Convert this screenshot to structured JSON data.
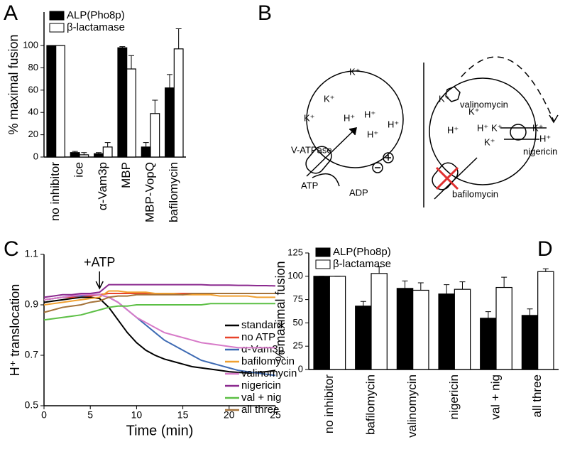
{
  "panels": [
    "A",
    "B",
    "C",
    "D"
  ],
  "chart_data": [
    {
      "type": "bar",
      "ylabel": "% maximal fusion",
      "categories": [
        "no inhibitor",
        "ice",
        "α-Vam3p",
        "MBP",
        "MBP-VopQ",
        "bafilomycin"
      ],
      "series": [
        {
          "name": "ALP(Pho8p)",
          "color": "#000000",
          "values": [
            100,
            4,
            3,
            98,
            9,
            62
          ],
          "errors": [
            0,
            1,
            1,
            1,
            4,
            12
          ]
        },
        {
          "name": "β-lactamase",
          "color": "#ffffff",
          "values": [
            100,
            2,
            9,
            79,
            39,
            97
          ],
          "errors": [
            0,
            2,
            4,
            12,
            12,
            18
          ]
        }
      ],
      "ylim": [
        0,
        130
      ],
      "yticks": [
        0,
        20,
        40,
        60,
        80,
        100
      ]
    },
    {
      "type": "line",
      "ylabel": "H⁺ translocation",
      "xlabel": "Time (min)",
      "annotation": {
        "text": "+ATP",
        "x": 6
      },
      "x": [
        0,
        1,
        2,
        3,
        4,
        5,
        6,
        7,
        8,
        9,
        10,
        11,
        12,
        13,
        14,
        15,
        16,
        17,
        18,
        19,
        20,
        21,
        22,
        23,
        24,
        25
      ],
      "series": [
        {
          "name": "standard",
          "color": "#000000",
          "values": [
            0.91,
            0.915,
            0.92,
            0.925,
            0.93,
            0.93,
            0.925,
            0.89,
            0.84,
            0.79,
            0.75,
            0.72,
            0.7,
            0.685,
            0.675,
            0.665,
            0.655,
            0.65,
            0.645,
            0.64,
            0.635,
            0.632,
            0.63,
            0.632,
            0.635,
            0.64
          ]
        },
        {
          "name": "no ATP",
          "color": "#e8432a",
          "values": [
            0.92,
            0.925,
            0.93,
            0.93,
            0.935,
            0.935,
            0.94,
            0.945,
            0.945,
            0.945,
            0.945,
            0.945,
            0.945,
            0.945,
            0.945,
            0.945,
            0.945,
            0.945,
            0.945,
            0.945,
            0.945,
            0.945,
            0.945,
            0.945,
            0.945,
            0.945
          ]
        },
        {
          "name": "α-Vam3p",
          "color": "#3d6ab3",
          "values": [
            0.92,
            0.925,
            0.93,
            0.935,
            0.935,
            0.94,
            0.94,
            0.93,
            0.91,
            0.88,
            0.85,
            0.82,
            0.79,
            0.76,
            0.74,
            0.72,
            0.7,
            0.68,
            0.67,
            0.66,
            0.65,
            0.64,
            0.635,
            0.63,
            0.625,
            0.62
          ]
        },
        {
          "name": "bafilomycin",
          "color": "#f0a030",
          "values": [
            0.9,
            0.905,
            0.91,
            0.915,
            0.92,
            0.925,
            0.93,
            0.955,
            0.955,
            0.95,
            0.95,
            0.95,
            0.945,
            0.945,
            0.945,
            0.94,
            0.94,
            0.94,
            0.94,
            0.935,
            0.935,
            0.935,
            0.935,
            0.93,
            0.93,
            0.93
          ]
        },
        {
          "name": "valinomycin",
          "color": "#d77ac8",
          "values": [
            0.92,
            0.925,
            0.93,
            0.935,
            0.94,
            0.94,
            0.94,
            0.93,
            0.91,
            0.88,
            0.85,
            0.83,
            0.81,
            0.79,
            0.78,
            0.77,
            0.76,
            0.75,
            0.745,
            0.74,
            0.735,
            0.73,
            0.73,
            0.73,
            0.73,
            0.73
          ]
        },
        {
          "name": "nigericin",
          "color": "#8b2a8f",
          "values": [
            0.93,
            0.935,
            0.94,
            0.94,
            0.945,
            0.945,
            0.95,
            0.98,
            0.98,
            0.98,
            0.98,
            0.98,
            0.98,
            0.98,
            0.98,
            0.98,
            0.98,
            0.98,
            0.978,
            0.978,
            0.978,
            0.977,
            0.977,
            0.976,
            0.976,
            0.975
          ]
        },
        {
          "name": "val + nig",
          "color": "#5cbf45",
          "values": [
            0.84,
            0.845,
            0.85,
            0.855,
            0.86,
            0.87,
            0.88,
            0.89,
            0.895,
            0.895,
            0.9,
            0.9,
            0.9,
            0.9,
            0.9,
            0.9,
            0.9,
            0.9,
            0.905,
            0.905,
            0.905,
            0.905,
            0.905,
            0.905,
            0.905,
            0.905
          ]
        },
        {
          "name": "all three",
          "color": "#a5733a",
          "values": [
            0.87,
            0.88,
            0.89,
            0.895,
            0.9,
            0.91,
            0.915,
            0.93,
            0.935,
            0.935,
            0.94,
            0.94,
            0.94,
            0.94,
            0.94,
            0.94,
            0.945,
            0.945,
            0.945,
            0.945,
            0.945,
            0.945,
            0.945,
            0.945,
            0.945,
            0.945
          ]
        }
      ],
      "xlim": [
        0,
        25
      ],
      "xticks": [
        0,
        5,
        10,
        15,
        20,
        25
      ],
      "ylim": [
        0.5,
        1.1
      ],
      "yticks": [
        0.5,
        0.7,
        0.9,
        1.1
      ]
    },
    {
      "type": "bar",
      "ylabel": "% maximal fusion",
      "categories": [
        "no inhibitor",
        "bafilomycin",
        "valinomycin",
        "nigericin",
        "val + nig",
        "all three"
      ],
      "series": [
        {
          "name": "ALP(Pho8p)",
          "color": "#000000",
          "values": [
            100,
            68,
            87,
            81,
            55,
            58
          ],
          "errors": [
            0,
            5,
            8,
            10,
            7,
            7
          ]
        },
        {
          "name": "β-lactamase",
          "color": "#ffffff",
          "values": [
            100,
            103,
            85,
            86,
            88,
            105
          ],
          "errors": [
            0,
            7,
            8,
            8,
            11,
            3
          ]
        }
      ],
      "ylim": [
        0,
        125
      ],
      "yticks": [
        0,
        25,
        50,
        75,
        100,
        125
      ]
    }
  ],
  "diagram": {
    "labels": [
      "K⁺",
      "K⁺",
      "K⁺",
      "H⁺",
      "H⁺",
      "H⁺",
      "H⁺",
      "V-ATPase",
      "ATP",
      "ADP",
      "K⁺",
      "valinomycin",
      "K⁺",
      "H⁺",
      "H⁺",
      "K⁺",
      "K⁺",
      "K⁺",
      "H⁺",
      "nigericin",
      "bafilomycin"
    ]
  }
}
